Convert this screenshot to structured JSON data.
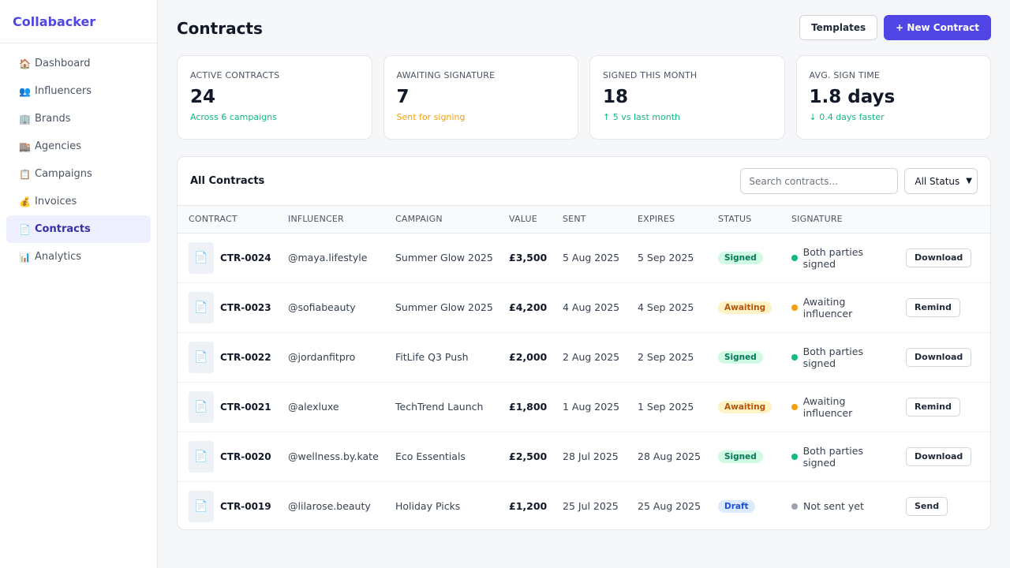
{
  "app": {
    "name": "Collabacker"
  },
  "sidebar": {
    "items": [
      {
        "icon": "🏠",
        "icon_name": "house-icon",
        "label": "Dashboard",
        "active": false
      },
      {
        "icon": "👥",
        "icon_name": "people-icon",
        "label": "Influencers",
        "active": false
      },
      {
        "icon": "🏢",
        "icon_name": "office-building-icon",
        "label": "Brands",
        "active": false
      },
      {
        "icon": "🏬",
        "icon_name": "department-store-icon",
        "label": "Agencies",
        "active": false
      },
      {
        "icon": "📋",
        "icon_name": "clipboard-icon",
        "label": "Campaigns",
        "active": false
      },
      {
        "icon": "💰",
        "icon_name": "money-bag-icon",
        "label": "Invoices",
        "active": false
      },
      {
        "icon": "📄",
        "icon_name": "document-icon",
        "label": "Contracts",
        "active": true
      },
      {
        "icon": "📊",
        "icon_name": "bar-chart-icon",
        "label": "Analytics",
        "active": false
      }
    ]
  },
  "header": {
    "title": "Contracts",
    "templates_label": "Templates",
    "new_contract_label": "+ New Contract"
  },
  "stats": [
    {
      "label": "Active Contracts",
      "value": "24",
      "sub": "Across 6 campaigns",
      "sub_color": "#10b981"
    },
    {
      "label": "Awaiting Signature",
      "value": "7",
      "sub": "Sent for signing",
      "sub_color": "#f59e0b"
    },
    {
      "label": "Signed This Month",
      "value": "18",
      "sub": "↑ 5 vs last month",
      "sub_color": "#10b981"
    },
    {
      "label": "Avg. Sign Time",
      "value": "1.8 days",
      "sub": "↓ 0.4 days faster",
      "sub_color": "#10b981"
    }
  ],
  "table": {
    "title": "All Contracts",
    "search_placeholder": "Search contracts...",
    "status_filter": "All Status",
    "columns": [
      "Contract",
      "Influencer",
      "Campaign",
      "Value",
      "Sent",
      "Expires",
      "Status",
      "Signature",
      ""
    ],
    "rows": [
      {
        "id": "CTR-0024",
        "influencer": "@maya.lifestyle",
        "campaign": "Summer Glow 2025",
        "value": "£3,500",
        "sent": "5 Aug 2025",
        "expires": "5 Sep 2025",
        "status": "Signed",
        "status_type": "signed",
        "signature": "Both parties signed",
        "sig_color": "#10b981",
        "action": "Download"
      },
      {
        "id": "CTR-0023",
        "influencer": "@sofiabeauty",
        "campaign": "Summer Glow 2025",
        "value": "£4,200",
        "sent": "4 Aug 2025",
        "expires": "4 Sep 2025",
        "status": "Awaiting",
        "status_type": "awaiting",
        "signature": "Awaiting influencer",
        "sig_color": "#f59e0b",
        "action": "Remind"
      },
      {
        "id": "CTR-0022",
        "influencer": "@jordanfitpro",
        "campaign": "FitLife Q3 Push",
        "value": "£2,000",
        "sent": "2 Aug 2025",
        "expires": "2 Sep 2025",
        "status": "Signed",
        "status_type": "signed",
        "signature": "Both parties signed",
        "sig_color": "#10b981",
        "action": "Download"
      },
      {
        "id": "CTR-0021",
        "influencer": "@alexluxe",
        "campaign": "TechTrend Launch",
        "value": "£1,800",
        "sent": "1 Aug 2025",
        "expires": "1 Sep 2025",
        "status": "Awaiting",
        "status_type": "awaiting",
        "signature": "Awaiting influencer",
        "sig_color": "#f59e0b",
        "action": "Remind"
      },
      {
        "id": "CTR-0020",
        "influencer": "@wellness.by.kate",
        "campaign": "Eco Essentials",
        "value": "£2,500",
        "sent": "28 Jul 2025",
        "expires": "28 Aug 2025",
        "status": "Signed",
        "status_type": "signed",
        "signature": "Both parties signed",
        "sig_color": "#10b981",
        "action": "Download"
      },
      {
        "id": "CTR-0019",
        "influencer": "@lilarose.beauty",
        "campaign": "Holiday Picks",
        "value": "£1,200",
        "sent": "25 Jul 2025",
        "expires": "25 Aug 2025",
        "status": "Draft",
        "status_type": "draft",
        "signature": "Not sent yet",
        "sig_color": "#9ca3af",
        "action": "Send"
      }
    ]
  }
}
